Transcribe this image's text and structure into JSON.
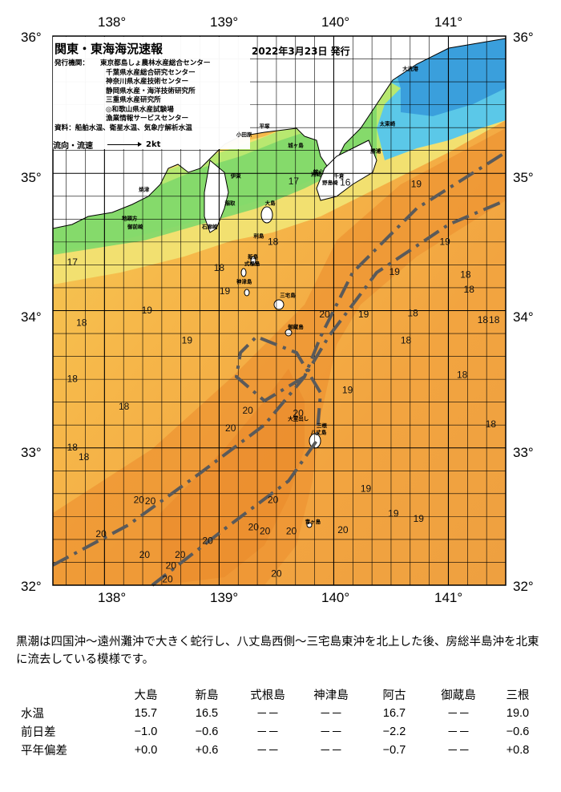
{
  "title": "関東・東海海況速報",
  "issue_date": "2022年3月23日 発行",
  "agencies_label": "発行機関：",
  "agencies": [
    "東京都島しょ農林水産総合センター",
    "千葉県水産総合研究センター",
    "神奈川県水産技術センター",
    "静岡県水産・海洋技術研究所",
    "三重県水産研究所",
    "◎和歌山県水産試験場",
    "漁業情報サービスセンター"
  ],
  "sources": "資料：船舶水温、衛星水温、気象庁解析水温",
  "legend": {
    "label": "流向・流速",
    "arrow_value": "2kt"
  },
  "longitude_labels": [
    "138°",
    "139°",
    "140°",
    "141°"
  ],
  "latitude_labels": [
    "36°",
    "35°",
    "34°",
    "33°",
    "32°"
  ],
  "isotherm_labels": [
    {
      "t": "17",
      "lon": 139.65,
      "lat": 34.92
    },
    {
      "t": "16",
      "lon": 140.1,
      "lat": 34.91
    },
    {
      "t": "19",
      "lon": 140.72,
      "lat": 34.9
    },
    {
      "t": "17",
      "lon": 137.72,
      "lat": 34.33
    },
    {
      "t": "18",
      "lon": 139.47,
      "lat": 34.48
    },
    {
      "t": "19",
      "lon": 140.97,
      "lat": 34.48
    },
    {
      "t": "18",
      "lon": 139.0,
      "lat": 34.29
    },
    {
      "t": "19",
      "lon": 140.53,
      "lat": 34.26
    },
    {
      "t": "18",
      "lon": 141.15,
      "lat": 34.24
    },
    {
      "t": "19",
      "lon": 139.05,
      "lat": 34.12
    },
    {
      "t": "18",
      "lon": 141.18,
      "lat": 34.13
    },
    {
      "t": "19",
      "lon": 138.37,
      "lat": 33.98
    },
    {
      "t": "20",
      "lon": 139.92,
      "lat": 33.95
    },
    {
      "t": "19",
      "lon": 140.26,
      "lat": 33.95
    },
    {
      "t": "18",
      "lon": 140.69,
      "lat": 33.96
    },
    {
      "t": "18",
      "lon": 141.3,
      "lat": 33.91
    },
    {
      "t": "18",
      "lon": 141.4,
      "lat": 33.91
    },
    {
      "t": "18",
      "lon": 137.8,
      "lat": 33.89
    },
    {
      "t": "19",
      "lon": 138.72,
      "lat": 33.76
    },
    {
      "t": "18",
      "lon": 140.63,
      "lat": 33.76
    },
    {
      "t": "18",
      "lon": 141.12,
      "lat": 33.51
    },
    {
      "t": "18",
      "lon": 137.72,
      "lat": 33.48
    },
    {
      "t": "19",
      "lon": 140.12,
      "lat": 33.4
    },
    {
      "t": "18",
      "lon": 138.17,
      "lat": 33.28
    },
    {
      "t": "20",
      "lon": 139.25,
      "lat": 33.25
    },
    {
      "t": "20",
      "lon": 139.69,
      "lat": 33.23
    },
    {
      "t": "18",
      "lon": 141.37,
      "lat": 33.15
    },
    {
      "t": "20",
      "lon": 139.1,
      "lat": 33.12
    },
    {
      "t": "18",
      "lon": 137.72,
      "lat": 32.98
    },
    {
      "t": "18",
      "lon": 137.82,
      "lat": 32.91
    },
    {
      "t": "19",
      "lon": 140.28,
      "lat": 32.68
    },
    {
      "t": "20",
      "lon": 138.3,
      "lat": 32.6
    },
    {
      "t": "20",
      "lon": 138.4,
      "lat": 32.59
    },
    {
      "t": "20",
      "lon": 139.47,
      "lat": 32.6
    },
    {
      "t": "19",
      "lon": 140.52,
      "lat": 32.5
    },
    {
      "t": "19",
      "lon": 140.74,
      "lat": 32.46
    },
    {
      "t": "20",
      "lon": 139.3,
      "lat": 32.4
    },
    {
      "t": "20",
      "lon": 140.08,
      "lat": 32.38
    },
    {
      "t": "20",
      "lon": 137.97,
      "lat": 32.35
    },
    {
      "t": "20",
      "lon": 139.4,
      "lat": 32.37
    },
    {
      "t": "20",
      "lon": 139.63,
      "lat": 32.37
    },
    {
      "t": "20",
      "lon": 138.9,
      "lat": 32.3
    },
    {
      "t": "20",
      "lon": 138.35,
      "lat": 32.2
    },
    {
      "t": "20",
      "lon": 138.66,
      "lat": 32.2
    },
    {
      "t": "20",
      "lon": 138.58,
      "lat": 32.12
    },
    {
      "t": "20",
      "lon": 139.5,
      "lat": 32.06
    },
    {
      "t": "20",
      "lon": 138.55,
      "lat": 32.02
    }
  ],
  "place_names": [
    {
      "t": "大洗港",
      "lon": 140.6,
      "lat": 35.75
    },
    {
      "t": "太東崎",
      "lon": 140.4,
      "lat": 35.35
    },
    {
      "t": "勝浦",
      "lon": 140.32,
      "lat": 35.15
    },
    {
      "t": "千倉",
      "lon": 140.0,
      "lat": 34.97
    },
    {
      "t": "野島崎",
      "lon": 139.9,
      "lat": 34.92
    },
    {
      "t": "洲崎",
      "lon": 139.8,
      "lat": 34.98
    },
    {
      "t": "館山",
      "lon": 139.82,
      "lat": 35.0
    },
    {
      "t": "小田原",
      "lon": 139.15,
      "lat": 35.27
    },
    {
      "t": "平塚",
      "lon": 139.35,
      "lat": 35.33
    },
    {
      "t": "城ヶ島",
      "lon": 139.6,
      "lat": 35.19
    },
    {
      "t": "伊東",
      "lon": 139.1,
      "lat": 34.97
    },
    {
      "t": "稲取",
      "lon": 139.05,
      "lat": 34.77
    },
    {
      "t": "石廊崎",
      "lon": 138.85,
      "lat": 34.6
    },
    {
      "t": "大島",
      "lon": 139.4,
      "lat": 34.77
    },
    {
      "t": "利島",
      "lon": 139.3,
      "lat": 34.53
    },
    {
      "t": "新島",
      "lon": 139.25,
      "lat": 34.38
    },
    {
      "t": "式根島",
      "lon": 139.22,
      "lat": 34.33
    },
    {
      "t": "神津島",
      "lon": 139.15,
      "lat": 34.2
    },
    {
      "t": "三宅島",
      "lon": 139.53,
      "lat": 34.1
    },
    {
      "t": "御蔵島",
      "lon": 139.6,
      "lat": 33.87
    },
    {
      "t": "八丈島",
      "lon": 139.8,
      "lat": 33.1
    },
    {
      "t": "大室出し",
      "lon": 139.6,
      "lat": 33.2
    },
    {
      "t": "三根",
      "lon": 139.85,
      "lat": 33.15
    },
    {
      "t": "青ヶ島",
      "lon": 139.75,
      "lat": 32.45
    },
    {
      "t": "御前崎",
      "lon": 138.2,
      "lat": 34.6
    },
    {
      "t": "焼津",
      "lon": 138.3,
      "lat": 34.87
    },
    {
      "t": "地頭方",
      "lon": 138.15,
      "lat": 34.66
    }
  ],
  "description": "黒潮は四国沖～遠州灘沖で大きく蛇行し、八丈島西側～三宅島東沖を北上した後、房総半島沖を北東に流去している模様です。",
  "observations": {
    "columns": [
      "",
      "大島",
      "新島",
      "式根島",
      "神津島",
      "阿古",
      "御蔵島",
      "三根"
    ],
    "rows": [
      {
        "label": "水温",
        "values": [
          "15.7",
          "16.5",
          "－－",
          "－－",
          "16.7",
          "－－",
          "19.0"
        ]
      },
      {
        "label": "前日差",
        "values": [
          "−1.0",
          "−0.6",
          "－－",
          "－－",
          "−2.2",
          "－－",
          "−0.6"
        ]
      },
      {
        "label": "平年偏差",
        "values": [
          "+0.0",
          "+0.6",
          "－－",
          "－－",
          "−0.7",
          "－－",
          "+0.8"
        ]
      }
    ]
  },
  "colors": {
    "land": "#ffffff",
    "cold_cyan": "#5bc8e8",
    "cold_blue": "#3aa0e0",
    "green": "#7fd86a",
    "light_green": "#b8e870",
    "yellow": "#f0e870",
    "light_orange": "#f6c450",
    "orange": "#f2a440",
    "dark_orange": "#ee9030",
    "kuroshio_line": "#555555",
    "grid": "#000000"
  }
}
